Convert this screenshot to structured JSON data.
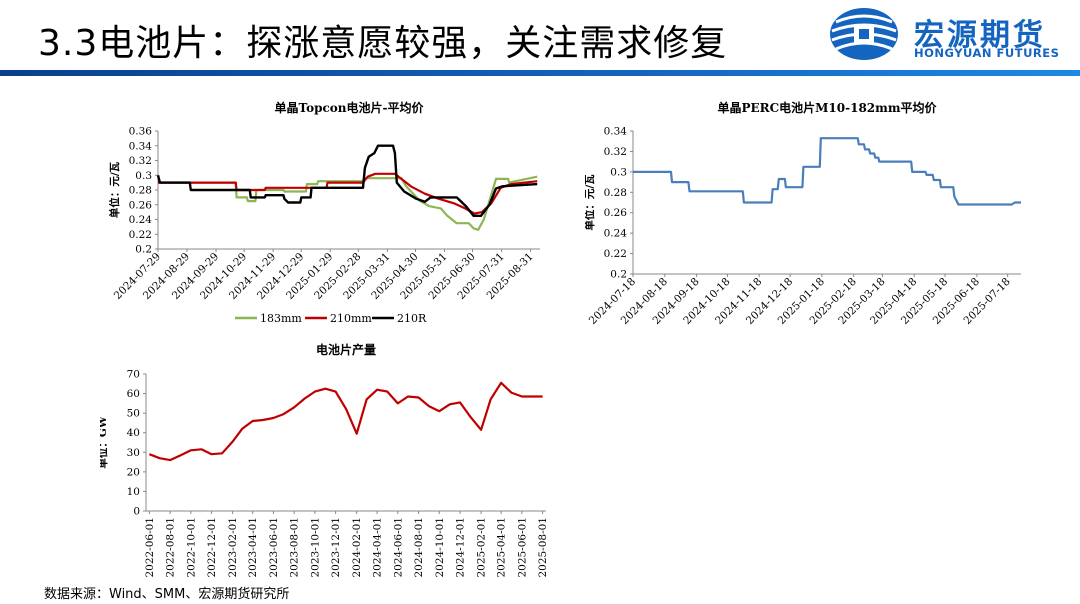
{
  "header": {
    "title": "3.3电池片：探涨意愿较强，关注需求修复",
    "logo_cn": "宏源期货",
    "logo_en": "HONGYUAN FUTURES",
    "accent": "#1565c0"
  },
  "source": "数据来源：Wind、SMM、宏源期货研究所",
  "chart_data": [
    {
      "type": "line",
      "title": "单晶Topcon电池片-平均价",
      "ylabel": "单位：元/瓦",
      "ylim": [
        0.2,
        0.36
      ],
      "yticks": [
        0.2,
        0.22,
        0.24,
        0.26,
        0.28,
        0.3,
        0.32,
        0.34,
        0.36
      ],
      "x_range": [
        "2024-07-29",
        "2025-09-10"
      ],
      "xticks": [
        "2024-07-29",
        "2024-08-29",
        "2024-09-29",
        "2024-10-29",
        "2024-11-29",
        "2024-12-29",
        "2025-01-29",
        "2025-02-28",
        "2025-03-31",
        "2025-04-30",
        "2025-05-31",
        "2025-06-30",
        "2025-07-31",
        "2025-08-31"
      ],
      "legend": "bottom",
      "series": [
        {
          "name": "183mm",
          "color": "#8db653",
          "points": [
            [
              "2024-07-29",
              0.29
            ],
            [
              "2024-10-20",
              0.29
            ],
            [
              "2024-10-21",
              0.27
            ],
            [
              "2024-11-01",
              0.27
            ],
            [
              "2024-11-02",
              0.265
            ],
            [
              "2024-11-10",
              0.265
            ],
            [
              "2024-11-11",
              0.28
            ],
            [
              "2024-12-10",
              0.28
            ],
            [
              "2024-12-11",
              0.278
            ],
            [
              "2025-01-03",
              0.278
            ],
            [
              "2025-01-04",
              0.288
            ],
            [
              "2025-01-15",
              0.288
            ],
            [
              "2025-01-16",
              0.292
            ],
            [
              "2025-03-05",
              0.292
            ],
            [
              "2025-03-06",
              0.296
            ],
            [
              "2025-04-15",
              0.296
            ],
            [
              "2025-04-20",
              0.285
            ],
            [
              "2025-05-05",
              0.265
            ],
            [
              "2025-05-15",
              0.258
            ],
            [
              "2025-05-27",
              0.255
            ],
            [
              "2025-06-03",
              0.245
            ],
            [
              "2025-06-13",
              0.235
            ],
            [
              "2025-06-26",
              0.235
            ],
            [
              "2025-07-01",
              0.228
            ],
            [
              "2025-07-06",
              0.226
            ],
            [
              "2025-07-12",
              0.24
            ],
            [
              "2025-07-18",
              0.265
            ],
            [
              "2025-07-25",
              0.295
            ],
            [
              "2025-08-07",
              0.295
            ],
            [
              "2025-08-08",
              0.29
            ],
            [
              "2025-09-07",
              0.298
            ]
          ]
        },
        {
          "name": "210mm",
          "color": "#c00000",
          "points": [
            [
              "2024-07-29",
              0.29
            ],
            [
              "2024-10-20",
              0.29
            ],
            [
              "2024-10-21",
              0.28
            ],
            [
              "2024-11-20",
              0.28
            ],
            [
              "2024-11-21",
              0.283
            ],
            [
              "2025-01-25",
              0.283
            ],
            [
              "2025-01-26",
              0.29
            ],
            [
              "2025-03-05",
              0.29
            ],
            [
              "2025-03-10",
              0.298
            ],
            [
              "2025-03-18",
              0.302
            ],
            [
              "2025-04-08",
              0.302
            ],
            [
              "2025-04-15",
              0.295
            ],
            [
              "2025-04-25",
              0.285
            ],
            [
              "2025-05-10",
              0.275
            ],
            [
              "2025-05-25",
              0.268
            ],
            [
              "2025-06-10",
              0.262
            ],
            [
              "2025-06-22",
              0.255
            ],
            [
              "2025-07-02",
              0.248
            ],
            [
              "2025-07-10",
              0.25
            ],
            [
              "2025-07-20",
              0.262
            ],
            [
              "2025-07-30",
              0.283
            ],
            [
              "2025-08-10",
              0.288
            ],
            [
              "2025-09-07",
              0.292
            ]
          ]
        },
        {
          "name": "210R",
          "color": "#000000",
          "points": [
            [
              "2024-07-29",
              0.3
            ],
            [
              "2024-07-31",
              0.29
            ],
            [
              "2024-09-01",
              0.29
            ],
            [
              "2024-09-02",
              0.28
            ],
            [
              "2024-11-04",
              0.28
            ],
            [
              "2024-11-05",
              0.27
            ],
            [
              "2024-11-20",
              0.27
            ],
            [
              "2024-11-21",
              0.273
            ],
            [
              "2024-12-10",
              0.273
            ],
            [
              "2024-12-11",
              0.268
            ],
            [
              "2024-12-15",
              0.263
            ],
            [
              "2024-12-28",
              0.263
            ],
            [
              "2024-12-29",
              0.27
            ],
            [
              "2025-01-08",
              0.27
            ],
            [
              "2025-01-09",
              0.283
            ],
            [
              "2025-03-05",
              0.283
            ],
            [
              "2025-03-07",
              0.31
            ],
            [
              "2025-03-11",
              0.325
            ],
            [
              "2025-03-17",
              0.33
            ],
            [
              "2025-03-21",
              0.34
            ],
            [
              "2025-04-06",
              0.34
            ],
            [
              "2025-04-08",
              0.33
            ],
            [
              "2025-04-10",
              0.29
            ],
            [
              "2025-04-18",
              0.278
            ],
            [
              "2025-05-01",
              0.268
            ],
            [
              "2025-05-10",
              0.264
            ],
            [
              "2025-05-16",
              0.27
            ],
            [
              "2025-06-13",
              0.27
            ],
            [
              "2025-06-23",
              0.258
            ],
            [
              "2025-07-01",
              0.245
            ],
            [
              "2025-07-09",
              0.245
            ],
            [
              "2025-07-18",
              0.26
            ],
            [
              "2025-07-25",
              0.282
            ],
            [
              "2025-08-01",
              0.285
            ],
            [
              "2025-09-07",
              0.288
            ]
          ]
        }
      ]
    },
    {
      "type": "line",
      "title": "单晶PERC电池片M10-182mm平均价",
      "ylabel": "单位：元/瓦",
      "ylim": [
        0.2,
        0.34
      ],
      "yticks": [
        0.2,
        0.22,
        0.24,
        0.26,
        0.28,
        0.3,
        0.32,
        0.34
      ],
      "x_range": [
        "2024-07-18",
        "2025-07-31"
      ],
      "xticks": [
        "2024-07-18",
        "2024-08-18",
        "2024-09-18",
        "2024-10-18",
        "2024-11-18",
        "2024-12-18",
        "2025-01-18",
        "2025-02-18",
        "2025-03-18",
        "2025-04-18",
        "2025-05-18",
        "2025-06-18",
        "2025-07-18"
      ],
      "series": [
        {
          "name": "PERC M10-182mm",
          "color": "#4a7ebb",
          "points": [
            [
              "2024-07-18",
              0.3
            ],
            [
              "2024-08-24",
              0.3
            ],
            [
              "2024-08-25",
              0.29
            ],
            [
              "2024-09-10",
              0.29
            ],
            [
              "2024-09-11",
              0.281
            ],
            [
              "2024-11-02",
              0.281
            ],
            [
              "2024-11-03",
              0.27
            ],
            [
              "2024-11-30",
              0.27
            ],
            [
              "2024-12-01",
              0.283
            ],
            [
              "2024-12-06",
              0.283
            ],
            [
              "2024-12-07",
              0.293
            ],
            [
              "2024-12-13",
              0.293
            ],
            [
              "2024-12-14",
              0.285
            ],
            [
              "2024-12-30",
              0.285
            ],
            [
              "2024-12-31",
              0.305
            ],
            [
              "2025-01-16",
              0.305
            ],
            [
              "2025-01-17",
              0.333
            ],
            [
              "2025-02-22",
              0.333
            ],
            [
              "2025-02-23",
              0.327
            ],
            [
              "2025-02-28",
              0.327
            ],
            [
              "2025-03-01",
              0.322
            ],
            [
              "2025-03-05",
              0.322
            ],
            [
              "2025-03-06",
              0.318
            ],
            [
              "2025-03-10",
              0.318
            ],
            [
              "2025-03-11",
              0.314
            ],
            [
              "2025-03-14",
              0.314
            ],
            [
              "2025-03-15",
              0.31
            ],
            [
              "2025-04-15",
              0.31
            ],
            [
              "2025-04-16",
              0.3
            ],
            [
              "2025-04-29",
              0.3
            ],
            [
              "2025-04-30",
              0.297
            ],
            [
              "2025-05-06",
              0.297
            ],
            [
              "2025-05-07",
              0.292
            ],
            [
              "2025-05-13",
              0.292
            ],
            [
              "2025-05-14",
              0.285
            ],
            [
              "2025-05-26",
              0.285
            ],
            [
              "2025-05-27",
              0.276
            ],
            [
              "2025-05-31",
              0.268
            ],
            [
              "2025-07-22",
              0.268
            ],
            [
              "2025-07-25",
              0.27
            ],
            [
              "2025-07-31",
              0.27
            ]
          ]
        }
      ]
    },
    {
      "type": "line",
      "title": "电池片产量",
      "ylabel": "单位：GW",
      "ylim": [
        0,
        70
      ],
      "yticks": [
        0,
        10,
        20,
        30,
        40,
        50,
        60,
        70
      ],
      "xticks": [
        "2022-06-01",
        "2022-08-01",
        "2022-10-01",
        "2022-12-01",
        "2023-02-01",
        "2023-04-01",
        "2023-06-01",
        "2023-08-01",
        "2023-10-01",
        "2023-12-01",
        "2024-02-01",
        "2024-04-01",
        "2024-06-01",
        "2024-08-01",
        "2024-10-01",
        "2024-12-01",
        "2025-02-01",
        "2025-04-01",
        "2025-06-01",
        "2025-08-01"
      ],
      "series": [
        {
          "name": "电池片产量",
          "color": "#c00000",
          "points": [
            [
              "2022-06-01",
              29
            ],
            [
              "2022-07-01",
              27
            ],
            [
              "2022-08-01",
              26
            ],
            [
              "2022-09-01",
              28.5
            ],
            [
              "2022-10-01",
              31
            ],
            [
              "2022-11-01",
              31.5
            ],
            [
              "2022-12-01",
              29
            ],
            [
              "2023-01-01",
              29.5
            ],
            [
              "2023-02-01",
              35.5
            ],
            [
              "2023-03-01",
              42
            ],
            [
              "2023-04-01",
              46
            ],
            [
              "2023-05-01",
              46.5
            ],
            [
              "2023-06-01",
              47.5
            ],
            [
              "2023-07-01",
              49.5
            ],
            [
              "2023-08-01",
              53
            ],
            [
              "2023-09-01",
              57.5
            ],
            [
              "2023-10-01",
              61
            ],
            [
              "2023-11-01",
              62.5
            ],
            [
              "2023-12-01",
              61
            ],
            [
              "2024-01-01",
              52
            ],
            [
              "2024-02-01",
              39.5
            ],
            [
              "2024-03-01",
              57
            ],
            [
              "2024-04-01",
              62
            ],
            [
              "2024-05-01",
              61
            ],
            [
              "2024-06-01",
              55
            ],
            [
              "2024-07-01",
              58.5
            ],
            [
              "2024-08-01",
              58
            ],
            [
              "2024-09-01",
              53.5
            ],
            [
              "2024-10-01",
              51
            ],
            [
              "2024-11-01",
              54.5
            ],
            [
              "2024-12-01",
              55.5
            ],
            [
              "2025-01-01",
              48
            ],
            [
              "2025-02-01",
              41.5
            ],
            [
              "2025-03-01",
              57
            ],
            [
              "2025-04-01",
              65.5
            ],
            [
              "2025-05-01",
              60.5
            ],
            [
              "2025-06-01",
              58.5
            ],
            [
              "2025-07-01",
              58.5
            ],
            [
              "2025-08-01",
              58.5
            ]
          ]
        }
      ]
    }
  ]
}
